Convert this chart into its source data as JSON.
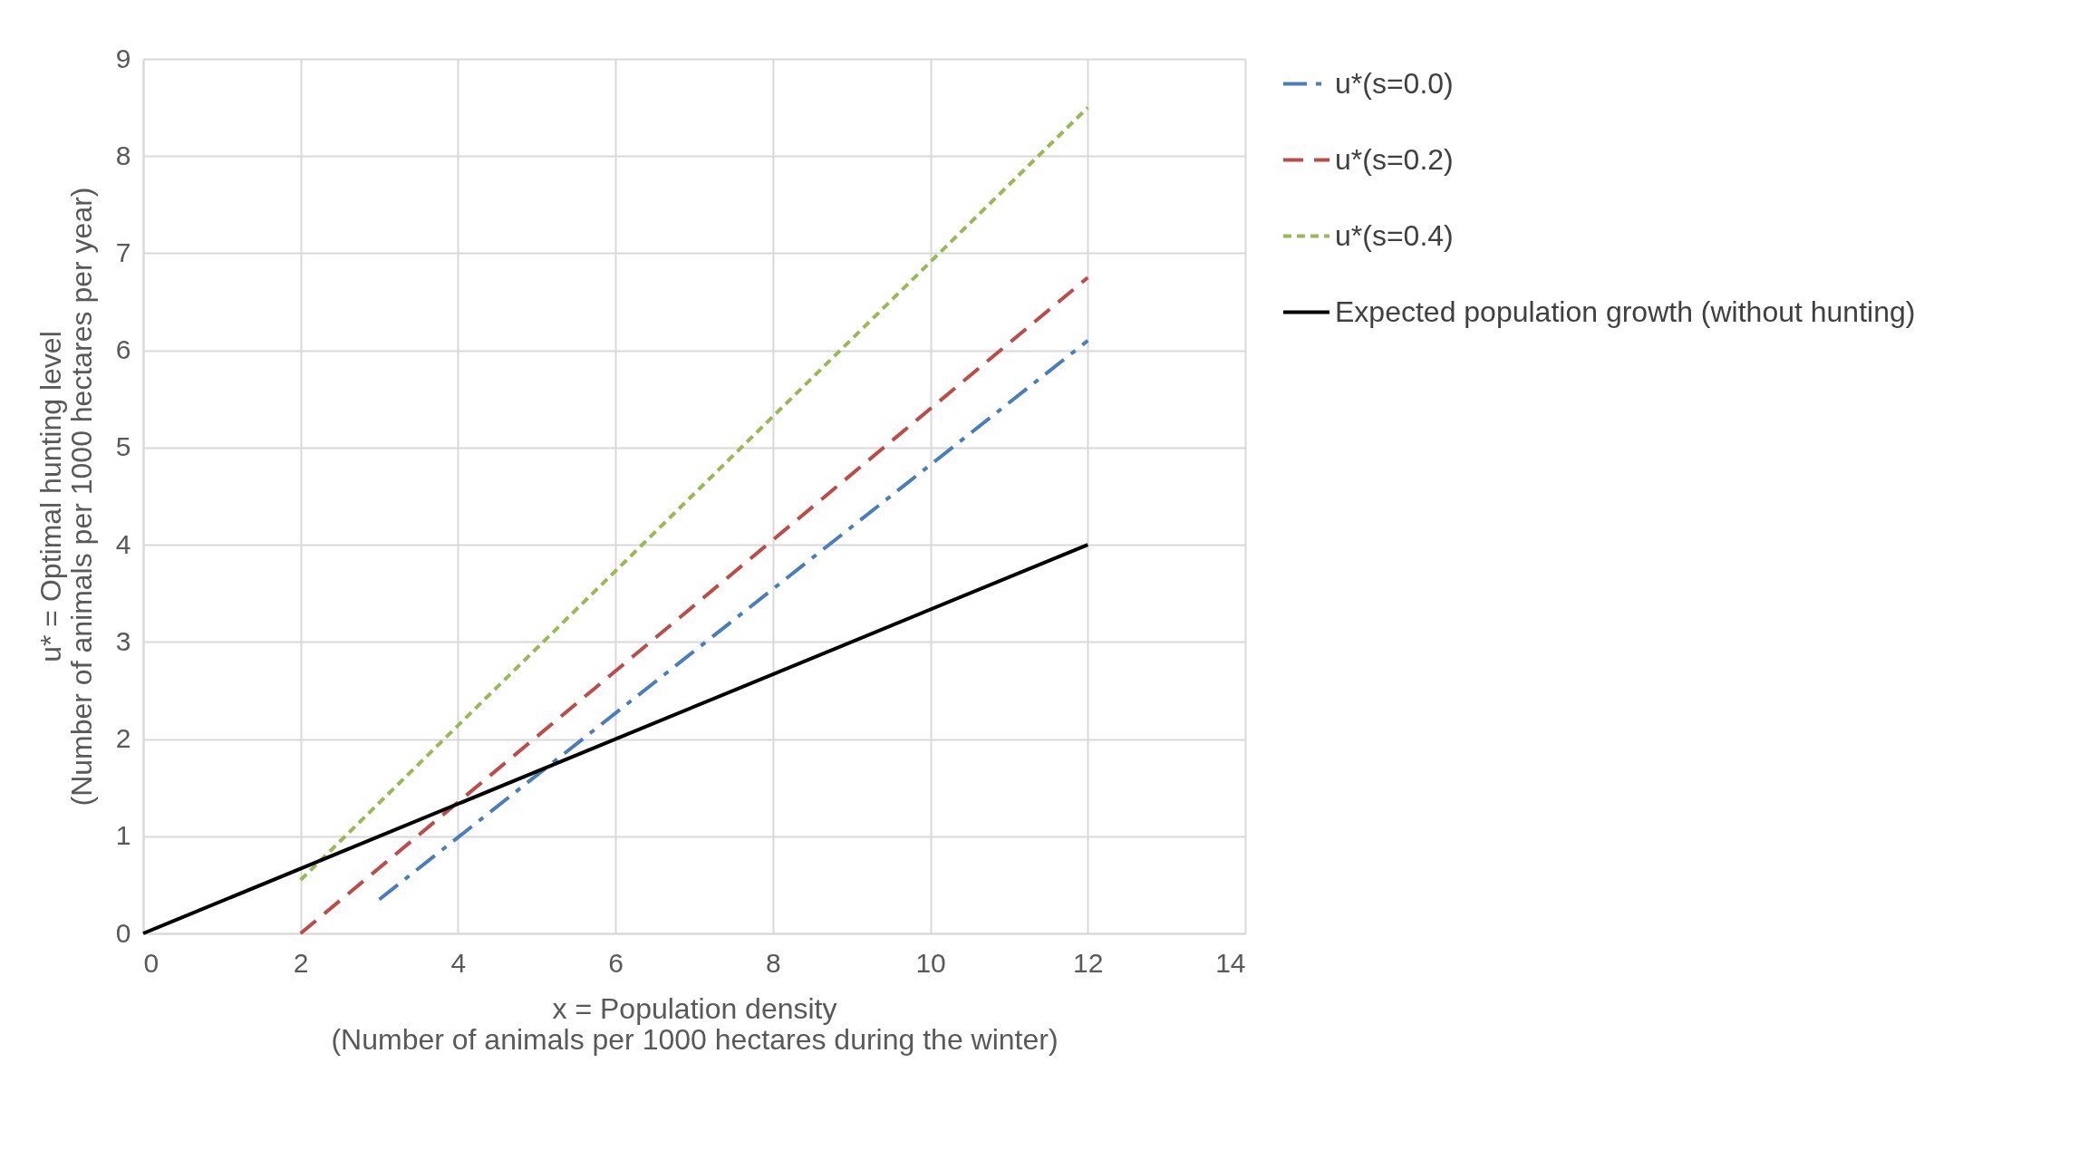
{
  "chart_data": {
    "type": "line",
    "xlabel": "x = Population density\n(Number of animals per 1000 hectares during the winter)",
    "ylabel": "u* = Optimal hunting level\n(Number of animals per 1000 hectares per year)",
    "xlim": [
      0,
      14
    ],
    "xticks": [
      0,
      2,
      4,
      6,
      8,
      10,
      12,
      14
    ],
    "ylim": [
      0,
      9
    ],
    "yticks": [
      0,
      1,
      2,
      3,
      4,
      5,
      6,
      7,
      8,
      9
    ],
    "grid": true,
    "legend": "right",
    "marker": "none",
    "series": [
      {
        "name": "u*(s=0.0)",
        "color": "#4a7ebb",
        "line_style": "dashdot",
        "x": [
          3,
          12
        ],
        "values": [
          0.35,
          6.1
        ]
      },
      {
        "name": "u*(s=0.2)",
        "color": "#be4b48",
        "line_style": "dashed",
        "x": [
          2,
          12
        ],
        "values": [
          0,
          6.75
        ]
      },
      {
        "name": "u*(s=0.4)",
        "color": "#98b954",
        "line_style": "dotted",
        "x": [
          2,
          12
        ],
        "values": [
          0.55,
          8.5
        ]
      },
      {
        "name": "Expected population growth (without hunting)",
        "color": "#000000",
        "line_style": "solid",
        "x": [
          0,
          12
        ],
        "values": [
          0,
          4
        ]
      }
    ]
  }
}
